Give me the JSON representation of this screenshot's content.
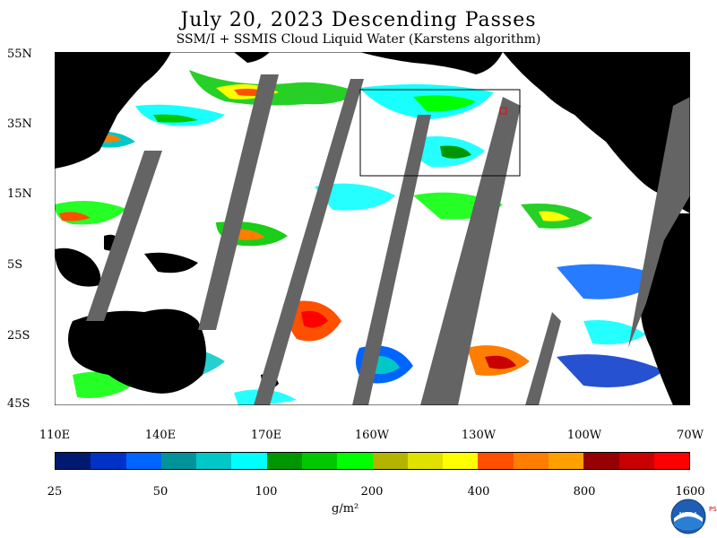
{
  "title": "July 20, 2023  Descending Passes",
  "subtitle": "SSM/I + SSMIS Cloud Liquid Water (Karstens algorithm)",
  "lat_labels": [
    "55N",
    "35N",
    "15N",
    "5S",
    "25S",
    "45S"
  ],
  "lon_labels": [
    "110E",
    "140E",
    "170E",
    "160W",
    "130W",
    "100W",
    "70W"
  ],
  "colorbar": {
    "colors": [
      "#001a72",
      "#0032c8",
      "#0064ff",
      "#00949a",
      "#00c8c8",
      "#00ffff",
      "#009600",
      "#00c800",
      "#00ff00",
      "#b4b400",
      "#e1e100",
      "#ffff00",
      "#ff5000",
      "#ff7d00",
      "#ffa000",
      "#960000",
      "#c80000",
      "#ff0000"
    ],
    "tick_labels": [
      "25",
      "50",
      "100",
      "200",
      "400",
      "800",
      "1600"
    ],
    "unit_label": "g/m²"
  },
  "colors": {
    "land": "#000000",
    "no_data_swath": "#646464",
    "ocean_clear": "#ffffff"
  },
  "logo": {
    "name": "NOAA",
    "side_text": "PSL"
  }
}
